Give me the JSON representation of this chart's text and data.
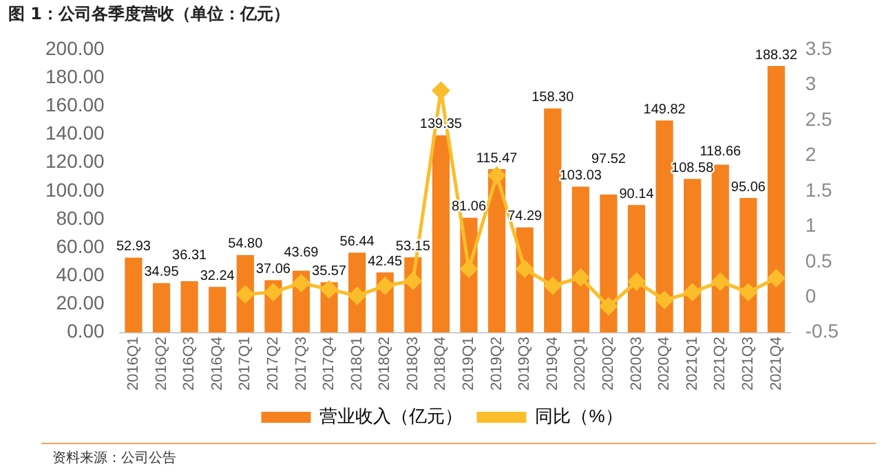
{
  "chart_data": {
    "type": "bar",
    "title": "图 1：公司各季度营收（单位：亿元）",
    "categories": [
      "2016Q1",
      "2016Q2",
      "2016Q3",
      "2016Q4",
      "2017Q1",
      "2017Q2",
      "2017Q3",
      "2017Q4",
      "2018Q1",
      "2018Q2",
      "2018Q3",
      "2018Q4",
      "2019Q1",
      "2019Q2",
      "2019Q3",
      "2019Q4",
      "2020Q1",
      "2020Q2",
      "2020Q3",
      "2020Q4",
      "2021Q1",
      "2021Q2",
      "2021Q3",
      "2021Q4"
    ],
    "series": [
      {
        "name": "营业收入（亿元）",
        "color": "#f5821f",
        "values": [
          52.93,
          34.95,
          36.31,
          32.24,
          54.8,
          37.06,
          43.69,
          35.57,
          56.44,
          42.45,
          53.15,
          139.35,
          81.06,
          115.47,
          74.29,
          158.3,
          103.03,
          97.52,
          90.14,
          149.82,
          108.58,
          118.66,
          95.06,
          188.32
        ],
        "value_labels": [
          "52.93",
          "34.95",
          "36.31",
          "32.24",
          "54.80",
          "37.06",
          "43.69",
          "35.57",
          "56.44",
          "42.45",
          "53.15",
          "139.35",
          "81.06",
          "115.47",
          "74.29",
          "158.30",
          "103.03",
          "97.52",
          "90.14",
          "149.82",
          "108.58",
          "118.66",
          "95.06",
          "188.32"
        ]
      },
      {
        "name": "同比（%）",
        "type": "line",
        "axis": "y2",
        "color": "#fbbd2b",
        "marker": "diamond",
        "values": [
          null,
          null,
          null,
          null,
          0.04,
          0.07,
          0.2,
          0.11,
          0.02,
          0.16,
          0.23,
          2.92,
          0.4,
          1.72,
          0.4,
          0.16,
          0.28,
          -0.13,
          0.22,
          -0.04,
          0.07,
          0.22,
          0.07,
          0.27
        ]
      }
    ],
    "ylim": [
      0,
      200
    ],
    "yticks": [
      {
        "value": 0,
        "label": "0.00"
      },
      {
        "value": 20,
        "label": "20.00"
      },
      {
        "value": 40,
        "label": "40.00"
      },
      {
        "value": 60,
        "label": "60.00"
      },
      {
        "value": 80,
        "label": "80.00"
      },
      {
        "value": 100,
        "label": "100.00"
      },
      {
        "value": 120,
        "label": "120.00"
      },
      {
        "value": 140,
        "label": "140.00"
      },
      {
        "value": 160,
        "label": "160.00"
      },
      {
        "value": 180,
        "label": "180.00"
      },
      {
        "value": 200,
        "label": "200.00"
      }
    ],
    "y2lim": [
      -0.5,
      3.5
    ],
    "y2ticks": [
      -0.5,
      0,
      0.5,
      1,
      1.5,
      2,
      2.5,
      3,
      3.5
    ],
    "grid": false,
    "legend": "bottom",
    "annotations": [
      "资料来源：公司公告"
    ]
  }
}
